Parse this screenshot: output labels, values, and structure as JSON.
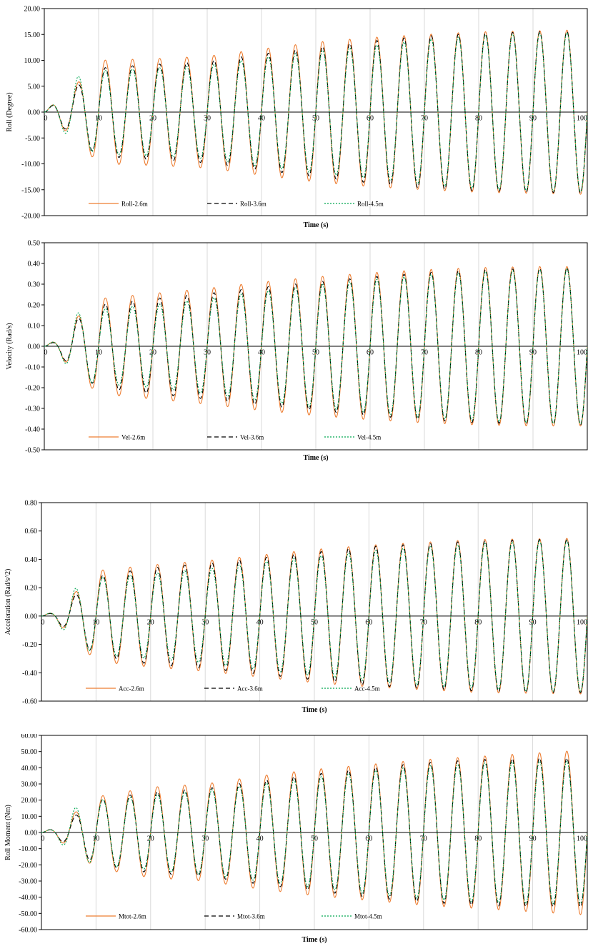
{
  "chart_data": [
    {
      "type": "line",
      "xlabel": "Time (s)",
      "ylabel": "Roll (Degree)",
      "xlim": [
        0,
        100
      ],
      "ylim": [
        -20,
        20
      ],
      "xticks": [
        0,
        10,
        20,
        30,
        40,
        50,
        60,
        70,
        80,
        90,
        100
      ],
      "xtick_labels": [
        "0",
        "10",
        "20",
        "30",
        "40",
        "50",
        "60",
        "70",
        "80",
        "90",
        "100"
      ],
      "yticks": [
        -20,
        -15,
        -10,
        -5,
        0,
        5,
        10,
        15,
        20
      ],
      "ytick_labels": [
        "-20.00",
        "-15.00",
        "-10.00",
        "-5.00",
        "0.00",
        "5.00",
        "10.00",
        "15.00",
        "20.00"
      ],
      "grid": "vertical",
      "legend_position": "bottom",
      "period_s": 5.0,
      "series": [
        {
          "name": "Roll-2.6m",
          "color": "#ED7D31",
          "dash": "solid",
          "amplitude": {
            "t": [
              0,
              2.5,
              6,
              10,
              20,
              30,
              40,
              50,
              60,
              70,
              80,
              90,
              100
            ],
            "a": [
              0,
              2.4,
              5.5,
              10.0,
              10.3,
              10.8,
              12.2,
              13.5,
              14.4,
              15.0,
              15.5,
              15.7,
              15.9
            ]
          }
        },
        {
          "name": "Roll-3.6m",
          "color": "#000000",
          "dash": "6,4",
          "amplitude": {
            "t": [
              0,
              2.5,
              6,
              10,
              20,
              30,
              40,
              50,
              60,
              70,
              80,
              90,
              100
            ],
            "a": [
              0,
              2.2,
              5.0,
              8.5,
              9.2,
              9.8,
              11.2,
              12.5,
              13.7,
              14.7,
              15.2,
              15.5,
              15.6
            ]
          }
        },
        {
          "name": "Roll-4.5m",
          "color": "#00A651",
          "dash": "2,2",
          "amplitude": {
            "t": [
              0,
              2.5,
              6,
              10,
              20,
              30,
              40,
              50,
              60,
              70,
              80,
              90,
              100
            ],
            "a": [
              0,
              2.4,
              6.8,
              8.0,
              8.5,
              9.0,
              10.5,
              11.8,
              12.8,
              14.0,
              14.8,
              15.2,
              15.4
            ]
          }
        }
      ]
    },
    {
      "type": "line",
      "xlabel": "Time (s)",
      "ylabel": "Velocity (Rad/s)",
      "xlim": [
        0,
        100
      ],
      "ylim": [
        -0.5,
        0.5
      ],
      "xticks": [
        0,
        10,
        20,
        30,
        40,
        50,
        60,
        70,
        80,
        90,
        100
      ],
      "xtick_labels": [
        "0",
        "10",
        "20",
        "30",
        "40",
        "50",
        "60",
        "70",
        "80",
        "90",
        "100"
      ],
      "yticks": [
        -0.5,
        -0.4,
        -0.3,
        -0.2,
        -0.1,
        0,
        0.1,
        0.2,
        0.3,
        0.4,
        0.5
      ],
      "ytick_labels": [
        "-0.50",
        "-0.40",
        "-0.30",
        "-0.20",
        "-0.10",
        "0.00",
        "0.10",
        "0.20",
        "0.30",
        "0.40",
        "0.50"
      ],
      "grid": "vertical",
      "legend_position": "bottom",
      "period_s": 5.0,
      "series": [
        {
          "name": "Vel-2.6m",
          "color": "#ED7D31",
          "dash": "solid",
          "amplitude": {
            "t": [
              0,
              2.5,
              6,
              10,
              20,
              30,
              40,
              50,
              60,
              70,
              80,
              90,
              100
            ],
            "a": [
              0,
              0.035,
              0.14,
              0.23,
              0.255,
              0.28,
              0.31,
              0.335,
              0.355,
              0.37,
              0.38,
              0.385,
              0.385
            ]
          }
        },
        {
          "name": "Vel-3.6m",
          "color": "#000000",
          "dash": "6,4",
          "amplitude": {
            "t": [
              0,
              2.5,
              6,
              10,
              20,
              30,
              40,
              50,
              60,
              70,
              80,
              90,
              100
            ],
            "a": [
              0,
              0.03,
              0.13,
              0.2,
              0.23,
              0.255,
              0.285,
              0.31,
              0.335,
              0.355,
              0.37,
              0.375,
              0.38
            ]
          }
        },
        {
          "name": "Vel-4.5m",
          "color": "#00A651",
          "dash": "2,2",
          "amplitude": {
            "t": [
              0,
              2.5,
              6,
              10,
              20,
              30,
              40,
              50,
              60,
              70,
              80,
              90,
              100
            ],
            "a": [
              0,
              0.035,
              0.16,
              0.18,
              0.2,
              0.23,
              0.265,
              0.295,
              0.32,
              0.345,
              0.36,
              0.37,
              0.375
            ]
          }
        }
      ]
    },
    {
      "type": "line",
      "xlabel": "Time (s)",
      "ylabel": "Acceleration (Rad/s^2)",
      "xlim": [
        0,
        100
      ],
      "ylim": [
        -0.6,
        0.8
      ],
      "xticks": [
        0,
        10,
        20,
        30,
        40,
        50,
        60,
        70,
        80,
        90,
        100
      ],
      "xtick_labels": [
        "0",
        "10",
        "20",
        "30",
        "40",
        "50",
        "60",
        "70",
        "80",
        "90",
        "100"
      ],
      "yticks": [
        -0.6,
        -0.4,
        -0.2,
        0,
        0.2,
        0.4,
        0.6,
        0.8
      ],
      "ytick_labels": [
        "-0.60",
        "-0.40",
        "-0.20",
        "0.00",
        "0.20",
        "0.40",
        "0.60",
        "0.80"
      ],
      "grid": "vertical",
      "legend_position": "bottom",
      "period_s": 5.0,
      "series": [
        {
          "name": "Acc-2.6m",
          "color": "#ED7D31",
          "dash": "solid",
          "amplitude": {
            "t": [
              0,
              2.5,
              6,
              10,
              20,
              30,
              40,
              50,
              60,
              70,
              80,
              90,
              100
            ],
            "a": [
              0,
              0.035,
              0.16,
              0.32,
              0.36,
              0.39,
              0.43,
              0.47,
              0.5,
              0.52,
              0.54,
              0.545,
              0.55
            ]
          }
        },
        {
          "name": "Acc-3.6m",
          "color": "#000000",
          "dash": "6,4",
          "amplitude": {
            "t": [
              0,
              2.5,
              6,
              10,
              20,
              30,
              40,
              50,
              60,
              70,
              80,
              90,
              100
            ],
            "a": [
              0,
              0.03,
              0.14,
              0.28,
              0.34,
              0.37,
              0.41,
              0.45,
              0.49,
              0.51,
              0.53,
              0.54,
              0.54
            ]
          }
        },
        {
          "name": "Acc-4.5m",
          "color": "#00A651",
          "dash": "2,2",
          "amplitude": {
            "t": [
              0,
              2.5,
              6,
              10,
              20,
              30,
              40,
              50,
              60,
              70,
              80,
              90,
              100
            ],
            "a": [
              0,
              0.035,
              0.19,
              0.27,
              0.3,
              0.33,
              0.38,
              0.42,
              0.46,
              0.49,
              0.51,
              0.53,
              0.53
            ]
          }
        }
      ]
    },
    {
      "type": "line",
      "xlabel": "Time (s)",
      "ylabel": "Roll Moment (Nm)",
      "xlim": [
        0,
        100
      ],
      "ylim": [
        -60,
        60
      ],
      "xticks": [
        0,
        10,
        20,
        30,
        40,
        50,
        60,
        70,
        80,
        90,
        100
      ],
      "xtick_labels": [
        "0",
        "10",
        "20",
        "30",
        "40",
        "50",
        "60",
        "70",
        "80",
        "90",
        "100"
      ],
      "yticks": [
        -60,
        -50,
        -40,
        -30,
        -20,
        -10,
        0,
        10,
        20,
        30,
        40,
        50,
        60
      ],
      "ytick_labels": [
        "-60.00",
        "-50.00",
        "-40.00",
        "-30.00",
        "-20.00",
        "-10.00",
        "0.00",
        "10.00",
        "20.00",
        "30.00",
        "40.00",
        "50.00",
        "60.00"
      ],
      "grid": "vertical",
      "legend_position": "bottom",
      "period_s": 5.0,
      "series": [
        {
          "name": "Mtot-2.6m",
          "color": "#ED7D31",
          "dash": "solid",
          "amplitude": {
            "t": [
              0,
              2.5,
              6,
              10,
              20,
              30,
              40,
              50,
              60,
              70,
              80,
              90,
              100
            ],
            "a": [
              0,
              3,
              12,
              22,
              28,
              30,
              35,
              39,
              42,
              45,
              47,
              49,
              51
            ]
          }
        },
        {
          "name": "Mtot-3.6m",
          "color": "#000000",
          "dash": "6,4",
          "amplitude": {
            "t": [
              0,
              2.5,
              6,
              10,
              20,
              30,
              40,
              50,
              60,
              70,
              80,
              90,
              100
            ],
            "a": [
              0,
              3,
              10,
              20,
              25,
              27,
              32,
              36,
              40,
              43,
              45,
              46,
              46
            ]
          }
        },
        {
          "name": "Mtot-4.5m",
          "color": "#00A651",
          "dash": "2,2",
          "amplitude": {
            "t": [
              0,
              2.5,
              6,
              10,
              20,
              30,
              40,
              50,
              60,
              70,
              80,
              90,
              100
            ],
            "a": [
              0,
              3,
              15,
              20,
              23,
              26,
              30,
              34,
              38,
              41,
              43,
              44,
              44
            ]
          }
        }
      ]
    }
  ]
}
